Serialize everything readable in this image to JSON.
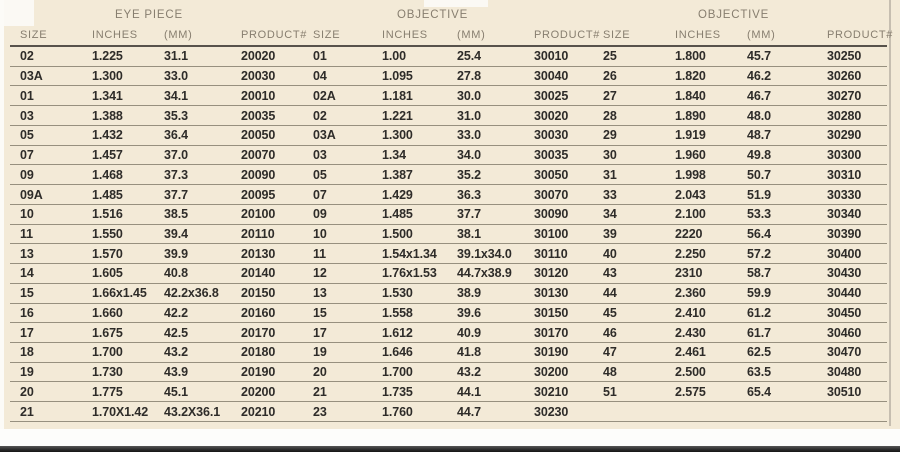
{
  "colors": {
    "background": "#f3ead7",
    "data_text": "#2e2c29",
    "header_text": "#877e6f",
    "row_line": "#97907f",
    "heavy_line": "#57524b",
    "bottom_bar": "#2b2b2b"
  },
  "table": {
    "groups": [
      {
        "label": "EYE PIECE"
      },
      {
        "label": "OBJECTIVE"
      },
      {
        "label": "OBJECTIVE"
      }
    ],
    "column_headers": [
      "SIZE",
      "INCHES",
      "(MM)",
      "PRODUCT#"
    ],
    "rows": [
      [
        [
          "02",
          "1.225",
          "31.1",
          "20020"
        ],
        [
          "01",
          "1.00",
          "25.4",
          "30010"
        ],
        [
          "25",
          "1.800",
          "45.7",
          "30250"
        ]
      ],
      [
        [
          "03A",
          "1.300",
          "33.0",
          "20030"
        ],
        [
          "04",
          "1.095",
          "27.8",
          "30040"
        ],
        [
          "26",
          "1.820",
          "46.2",
          "30260"
        ]
      ],
      [
        [
          "01",
          "1.341",
          "34.1",
          "20010"
        ],
        [
          "02A",
          "1.181",
          "30.0",
          "30025"
        ],
        [
          "27",
          "1.840",
          "46.7",
          "30270"
        ]
      ],
      [
        [
          "03",
          "1.388",
          "35.3",
          "20035"
        ],
        [
          "02",
          "1.221",
          "31.0",
          "30020"
        ],
        [
          "28",
          "1.890",
          "48.0",
          "30280"
        ]
      ],
      [
        [
          "05",
          "1.432",
          "36.4",
          "20050"
        ],
        [
          "03A",
          "1.300",
          "33.0",
          "30030"
        ],
        [
          "29",
          "1.919",
          "48.7",
          "30290"
        ]
      ],
      [
        [
          "07",
          "1.457",
          "37.0",
          "20070"
        ],
        [
          "03",
          "1.34",
          "34.0",
          "30035"
        ],
        [
          "30",
          "1.960",
          "49.8",
          "30300"
        ]
      ],
      [
        [
          "09",
          "1.468",
          "37.3",
          "20090"
        ],
        [
          "05",
          "1.387",
          "35.2",
          "30050"
        ],
        [
          "31",
          "1.998",
          "50.7",
          "30310"
        ]
      ],
      [
        [
          "09A",
          "1.485",
          "37.7",
          "20095"
        ],
        [
          "07",
          "1.429",
          "36.3",
          "30070"
        ],
        [
          "33",
          "2.043",
          "51.9",
          "30330"
        ]
      ],
      [
        [
          "10",
          "1.516",
          "38.5",
          "20100"
        ],
        [
          "09",
          "1.485",
          "37.7",
          "30090"
        ],
        [
          "34",
          "2.100",
          "53.3",
          "30340"
        ]
      ],
      [
        [
          "11",
          "1.550",
          "39.4",
          "20110"
        ],
        [
          "10",
          "1.500",
          "38.1",
          "30100"
        ],
        [
          "39",
          "2220",
          "56.4",
          "30390"
        ]
      ],
      [
        [
          "13",
          "1.570",
          "39.9",
          "20130"
        ],
        [
          "11",
          "1.54x1.34",
          "39.1x34.0",
          "30110"
        ],
        [
          "40",
          "2.250",
          "57.2",
          "30400"
        ]
      ],
      [
        [
          "14",
          "1.605",
          "40.8",
          "20140"
        ],
        [
          "12",
          "1.76x1.53",
          "44.7x38.9",
          "30120"
        ],
        [
          "43",
          "2310",
          "58.7",
          "30430"
        ]
      ],
      [
        [
          "15",
          "1.66x1.45",
          "42.2x36.8",
          "20150"
        ],
        [
          "13",
          "1.530",
          "38.9",
          "30130"
        ],
        [
          "44",
          "2.360",
          "59.9",
          "30440"
        ]
      ],
      [
        [
          "16",
          "1.660",
          "42.2",
          "20160"
        ],
        [
          "15",
          "1.558",
          "39.6",
          "30150"
        ],
        [
          "45",
          "2.410",
          "61.2",
          "30450"
        ]
      ],
      [
        [
          "17",
          "1.675",
          "42.5",
          "20170"
        ],
        [
          "17",
          "1.612",
          "40.9",
          "30170"
        ],
        [
          "46",
          "2.430",
          "61.7",
          "30460"
        ]
      ],
      [
        [
          "18",
          "1.700",
          "43.2",
          "20180"
        ],
        [
          "19",
          "1.646",
          "41.8",
          "30190"
        ],
        [
          "47",
          "2.461",
          "62.5",
          "30470"
        ]
      ],
      [
        [
          "19",
          "1.730",
          "43.9",
          "20190"
        ],
        [
          "20",
          "1.700",
          "43.2",
          "30200"
        ],
        [
          "48",
          "2.500",
          "63.5",
          "30480"
        ]
      ],
      [
        [
          "20",
          "1.775",
          "45.1",
          "20200"
        ],
        [
          "21",
          "1.735",
          "44.1",
          "30210"
        ],
        [
          "51",
          "2.575",
          "65.4",
          "30510"
        ]
      ],
      [
        [
          "21",
          "1.70X1.42",
          "43.2X36.1",
          "20210"
        ],
        [
          "23",
          "1.760",
          "44.7",
          "30230"
        ],
        [
          "",
          "",
          "",
          ""
        ]
      ]
    ]
  }
}
